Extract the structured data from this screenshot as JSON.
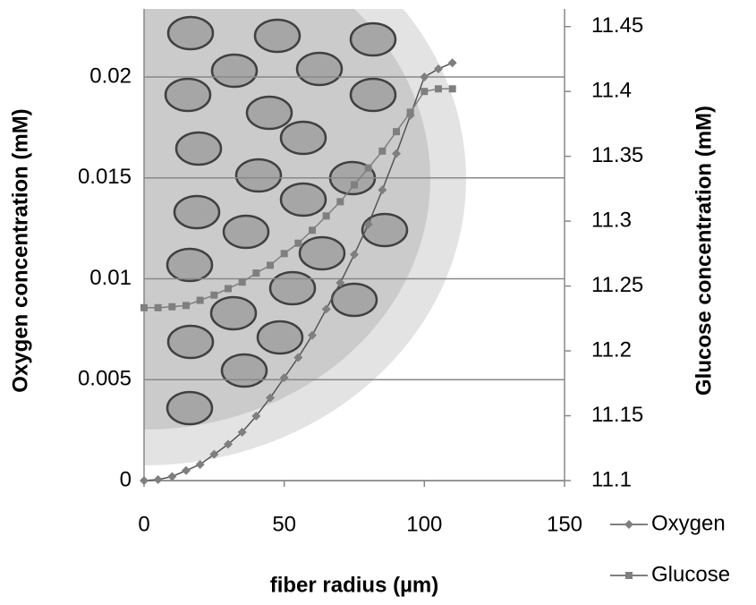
{
  "chart_data": {
    "type": "line",
    "x_label": "fiber radius (µm)",
    "y_label": "Oxygen concentration (mM)",
    "y2_label": "Glucose concentration (mM)",
    "x": [
      0,
      5,
      10,
      15,
      20,
      25,
      30,
      35,
      40,
      45,
      50,
      55,
      60,
      65,
      70,
      75,
      80,
      85,
      90,
      95,
      100,
      105,
      110
    ],
    "series": [
      {
        "name": "Oxygen",
        "color": "#7f7f7f",
        "marker": "diamond",
        "values": [
          0,
          5e-05,
          0.0002,
          0.0005,
          0.0008,
          0.0013,
          0.0018,
          0.0024,
          0.0032,
          0.0041,
          0.0051,
          0.0061,
          0.0072,
          0.0085,
          0.0098,
          0.0112,
          0.0127,
          0.0144,
          0.0162,
          0.0181,
          0.02,
          0.0204,
          0.0207
        ]
      },
      {
        "name": "Glucose",
        "color": "#7f7f7f",
        "marker": "square",
        "axis": "y2",
        "values": [
          11.2333,
          11.2333,
          11.234,
          11.235,
          11.239,
          11.243,
          11.248,
          11.253,
          11.26,
          11.266,
          11.275,
          11.283,
          11.293,
          11.304,
          11.315,
          11.328,
          11.341,
          11.354,
          11.369,
          11.384,
          11.4,
          11.402,
          11.402
        ]
      }
    ],
    "xlim": [
      0,
      150
    ],
    "xticks": [
      0,
      50,
      100,
      150
    ],
    "ylim": [
      0,
      0.02337
    ],
    "yticks": [
      0,
      0.005,
      0.01,
      0.015,
      0.02
    ],
    "y2lim": [
      11.1,
      11.4636
    ],
    "y2ticks": [
      11.1,
      11.15,
      11.2,
      11.25,
      11.3,
      11.35,
      11.4,
      11.45
    ],
    "grid": true,
    "legend": "bottom-right"
  }
}
